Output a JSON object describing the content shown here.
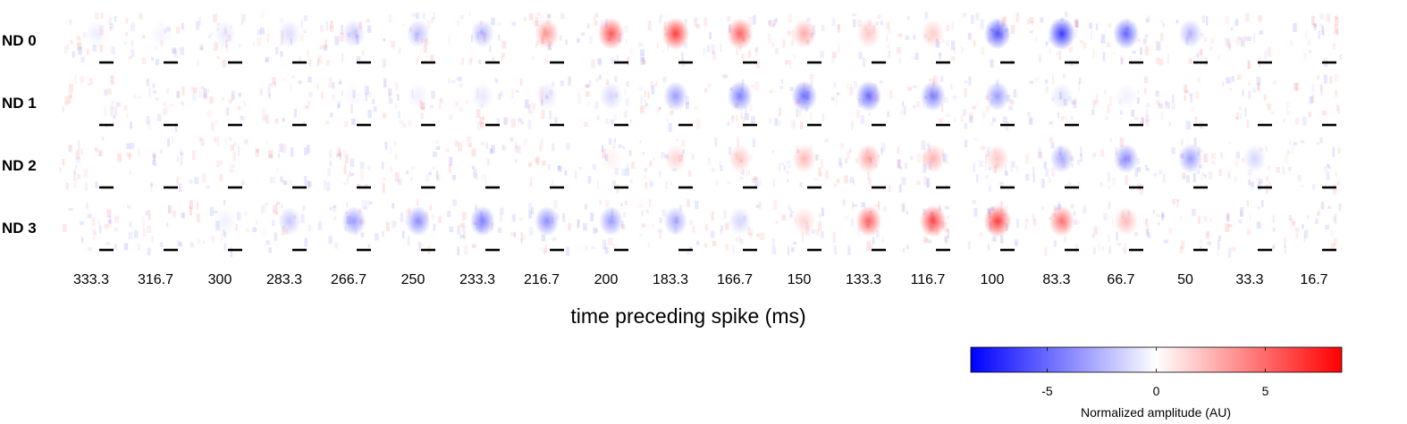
{
  "chart_data": {
    "type": "heatmap",
    "rows": [
      "ND 0",
      "ND 1",
      "ND 2",
      "ND 3"
    ],
    "columns": [
      "333.3",
      "316.7",
      "300",
      "283.3",
      "266.7",
      "250",
      "233.3",
      "216.7",
      "200",
      "183.3",
      "166.7",
      "150",
      "133.3",
      "116.7",
      "100",
      "83.3",
      "66.7",
      "50",
      "33.3",
      "16.7"
    ],
    "xlabel": "time preceding spike (ms)",
    "peak_amplitude": [
      [
        -0.6,
        -0.4,
        -0.8,
        -1.2,
        -1.8,
        -2.2,
        -2.4,
        3.5,
        6.0,
        6.8,
        5.5,
        3.0,
        2.0,
        1.8,
        -6.0,
        -7.0,
        -5.5,
        -2.5,
        0.0,
        0.0
      ],
      [
        0.0,
        0.0,
        0.0,
        0.0,
        -0.3,
        -0.5,
        -0.8,
        -1.0,
        -1.5,
        -3.5,
        -4.5,
        -5.0,
        -5.2,
        -4.5,
        -3.5,
        -1.0,
        -0.5,
        0.0,
        0.0,
        0.0
      ],
      [
        0.0,
        0.0,
        0.0,
        0.0,
        0.0,
        0.0,
        0.0,
        0.0,
        0.5,
        1.5,
        2.0,
        2.5,
        3.2,
        2.8,
        2.0,
        -3.0,
        -4.0,
        -3.5,
        -1.5,
        0.0
      ],
      [
        0.0,
        0.0,
        -0.5,
        -2.0,
        -3.5,
        -4.0,
        -4.5,
        -4.0,
        -3.5,
        -3.0,
        -1.5,
        1.5,
        5.5,
        6.5,
        6.8,
        5.0,
        2.5,
        0.0,
        0.0,
        0.0
      ]
    ],
    "colorbar": {
      "label": "Normalized amplitude (AU)",
      "ticks": [
        -5,
        0,
        5
      ],
      "range": [
        -8.5,
        8.5
      ],
      "low_color": "#0000ff",
      "mid_color": "#ffffff",
      "high_color": "#ff0000"
    }
  }
}
